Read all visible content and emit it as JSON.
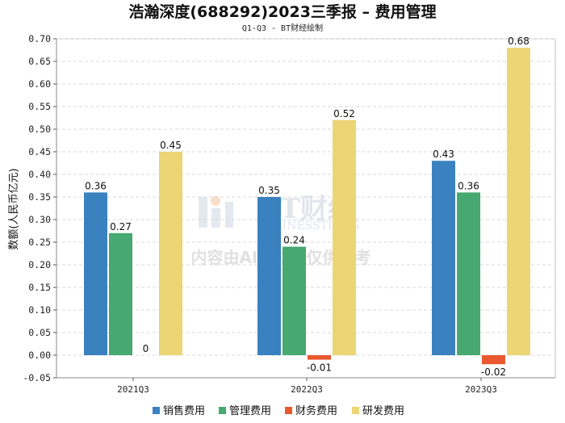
{
  "chart_data": {
    "type": "bar",
    "title": "浩瀚深度(688292)2023三季报 – 费用管理",
    "subtitle": "Q1-Q3 - BT财经绘制",
    "ylabel": "数额(人民币亿元)",
    "xlabel": "",
    "categories": [
      "2021Q3",
      "2022Q3",
      "2023Q3"
    ],
    "ylim": [
      -0.05,
      0.7
    ],
    "yticks": [
      "0.70",
      "0.65",
      "0.60",
      "0.55",
      "0.50",
      "0.45",
      "0.40",
      "0.35",
      "0.30",
      "0.25",
      "0.20",
      "0.15",
      "0.10",
      "0.05",
      "0.00",
      "-0.05"
    ],
    "grid": true,
    "legend_position": "bottom",
    "series": [
      {
        "name": "销售费用",
        "color": "#3a81c0",
        "values": [
          0.36,
          0.35,
          0.43
        ],
        "labels": [
          "0.36",
          "0.35",
          "0.43"
        ]
      },
      {
        "name": "管理费用",
        "color": "#47a871",
        "values": [
          0.27,
          0.24,
          0.36
        ],
        "labels": [
          "0.27",
          "0.24",
          "0.36"
        ]
      },
      {
        "name": "财务费用",
        "color": "#e9582f",
        "values": [
          0,
          -0.01,
          -0.02
        ],
        "labels": [
          "0",
          "-0.01",
          "-0.02"
        ]
      },
      {
        "name": "研发费用",
        "color": "#ecd574",
        "values": [
          0.45,
          0.52,
          0.68
        ],
        "labels": [
          "0.45",
          "0.52",
          "0.68"
        ]
      }
    ]
  },
  "watermark": {
    "brand": "BT财经",
    "brand_en": "BUSINESSTIMES",
    "notice": "内容由AI生成，仅供参考"
  }
}
